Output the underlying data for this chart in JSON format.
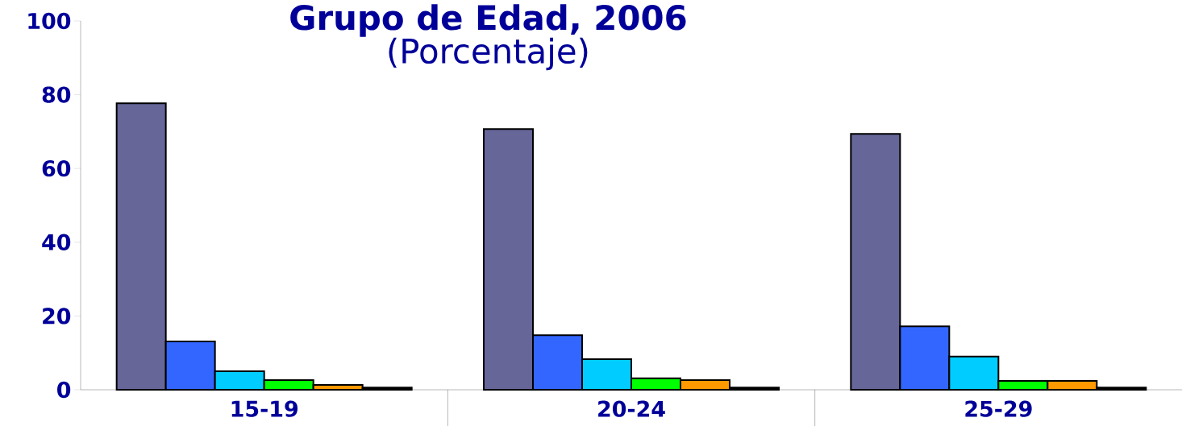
{
  "chart_data": {
    "type": "bar",
    "title": "Grupo de Edad, 2006",
    "subtitle": "(Porcentaje)",
    "categories": [
      "15-19",
      "20-24",
      "25-29"
    ],
    "series": [
      {
        "color": "#666699",
        "values": [
          77.7,
          70.7,
          69.4
        ]
      },
      {
        "color": "#3366ff",
        "values": [
          13.1,
          14.8,
          17.2
        ]
      },
      {
        "color": "#00ccff",
        "values": [
          5.0,
          8.3,
          9.0
        ]
      },
      {
        "color": "#00ff00",
        "values": [
          2.6,
          3.1,
          2.4
        ]
      },
      {
        "color": "#ff9900",
        "values": [
          1.3,
          2.6,
          2.4
        ]
      },
      {
        "color": "#000000",
        "values": [
          0.6,
          0.6,
          0.6
        ]
      }
    ],
    "ylim": [
      0,
      100
    ],
    "yticks": [
      0,
      20,
      40,
      60,
      80,
      100
    ],
    "grid": false
  }
}
